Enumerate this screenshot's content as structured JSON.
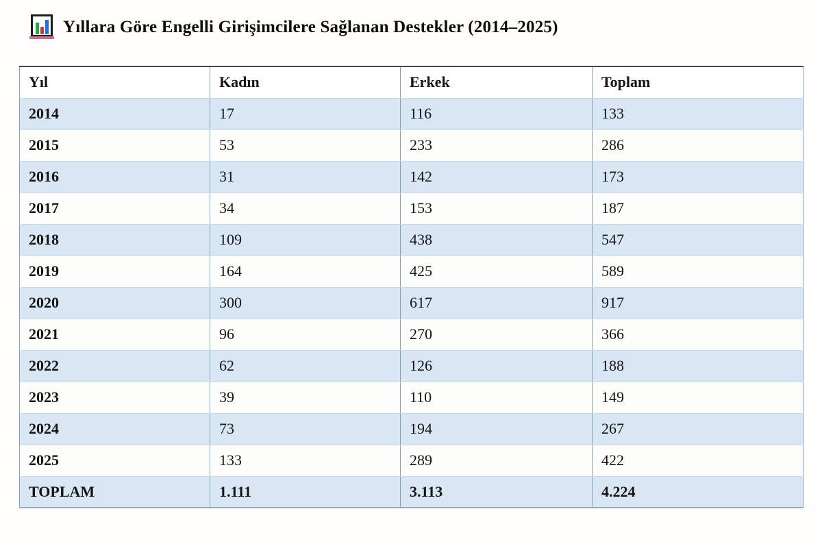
{
  "page": {
    "title": "Yıllara Göre Engelli Girişimcilere Sağlanan Destekler (2014–2025)",
    "title_icon": "bar-chart-icon"
  },
  "table": {
    "columns": [
      "Yıl",
      "Kadın",
      "Erkek",
      "Toplam"
    ],
    "rows": [
      [
        "2014",
        "17",
        "116",
        "133"
      ],
      [
        "2015",
        "53",
        "233",
        "286"
      ],
      [
        "2016",
        "31",
        "142",
        "173"
      ],
      [
        "2017",
        "34",
        "153",
        "187"
      ],
      [
        "2018",
        "109",
        "438",
        "547"
      ],
      [
        "2019",
        "164",
        "425",
        "589"
      ],
      [
        "2020",
        "300",
        "617",
        "917"
      ],
      [
        "2021",
        "96",
        "270",
        "366"
      ],
      [
        "2022",
        "62",
        "126",
        "188"
      ],
      [
        "2023",
        "39",
        "110",
        "149"
      ],
      [
        "2024",
        "73",
        "194",
        "267"
      ],
      [
        "2025",
        "133",
        "289",
        "422"
      ]
    ],
    "total_row": [
      "TOPLAM",
      "1.111",
      "3.113",
      "4.224"
    ]
  },
  "colors": {
    "stripe_row": "#d9e6f4",
    "plain_row": "#fdfdfa",
    "vertical_border": "#8e9eb1",
    "horizontal_border": "#cad8e9",
    "table_top_border": "#42474d",
    "icon_bar_green": "#2fa34b",
    "icon_bar_red": "#c93434",
    "icon_bar_blue": "#2f6cd0",
    "icon_base_pink": "#c4718d",
    "icon_frame": "#1c1c1c"
  }
}
